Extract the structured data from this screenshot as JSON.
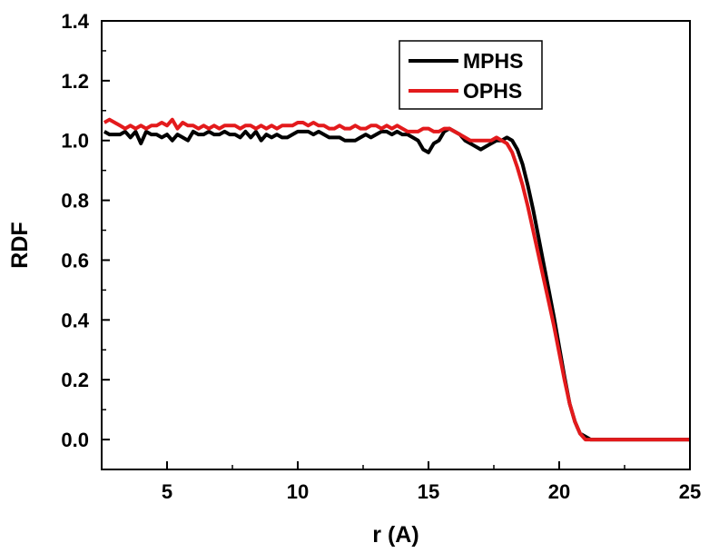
{
  "chart_data": {
    "type": "line",
    "xlabel": "r (A)",
    "ylabel": "RDF",
    "xlim": [
      2.5,
      25
    ],
    "ylim": [
      -0.1,
      1.4
    ],
    "xticks": [
      5,
      10,
      15,
      20,
      25
    ],
    "yticks": [
      0.0,
      0.2,
      0.4,
      0.6,
      0.8,
      1.0,
      1.2,
      1.4
    ],
    "ytick_labels": [
      "0.0",
      "0.2",
      "0.4",
      "0.6",
      "0.8",
      "1.0",
      "1.2",
      "1.4"
    ],
    "xtick_labels": [
      "5",
      "10",
      "15",
      "20",
      "25"
    ],
    "legend_position": "top-right",
    "grid": false,
    "series": [
      {
        "name": "MPHS",
        "color": "#000000",
        "x": [
          2.6,
          2.8,
          3.0,
          3.2,
          3.4,
          3.6,
          3.8,
          4.0,
          4.2,
          4.4,
          4.6,
          4.8,
          5.0,
          5.2,
          5.4,
          5.6,
          5.8,
          6.0,
          6.2,
          6.4,
          6.6,
          6.8,
          7.0,
          7.2,
          7.4,
          7.6,
          7.8,
          8.0,
          8.2,
          8.4,
          8.6,
          8.8,
          9.0,
          9.2,
          9.4,
          9.6,
          9.8,
          10.0,
          10.2,
          10.4,
          10.6,
          10.8,
          11.0,
          11.2,
          11.4,
          11.6,
          11.8,
          12.0,
          12.2,
          12.4,
          12.6,
          12.8,
          13.0,
          13.2,
          13.4,
          13.6,
          13.8,
          14.0,
          14.2,
          14.4,
          14.6,
          14.8,
          15.0,
          15.2,
          15.4,
          15.6,
          15.8,
          16.0,
          16.2,
          16.4,
          16.6,
          16.8,
          17.0,
          17.2,
          17.4,
          17.6,
          17.8,
          18.0,
          18.2,
          18.4,
          18.6,
          18.8,
          19.0,
          19.2,
          19.4,
          19.6,
          19.8,
          20.0,
          20.2,
          20.4,
          20.6,
          20.8,
          21.0,
          21.2,
          21.4,
          21.6,
          22.0,
          23.0,
          24.0,
          25.0
        ],
        "values": [
          1.03,
          1.02,
          1.02,
          1.02,
          1.03,
          1.01,
          1.03,
          0.99,
          1.03,
          1.02,
          1.02,
          1.01,
          1.02,
          1.0,
          1.02,
          1.01,
          1.0,
          1.03,
          1.02,
          1.02,
          1.03,
          1.02,
          1.02,
          1.03,
          1.02,
          1.02,
          1.01,
          1.03,
          1.01,
          1.03,
          1.0,
          1.02,
          1.01,
          1.02,
          1.01,
          1.01,
          1.02,
          1.03,
          1.03,
          1.03,
          1.02,
          1.03,
          1.02,
          1.01,
          1.01,
          1.01,
          1.0,
          1.0,
          1.0,
          1.01,
          1.02,
          1.01,
          1.02,
          1.03,
          1.03,
          1.02,
          1.03,
          1.02,
          1.02,
          1.01,
          1.0,
          0.97,
          0.96,
          0.99,
          1.0,
          1.03,
          1.04,
          1.03,
          1.02,
          1.0,
          0.99,
          0.98,
          0.97,
          0.98,
          0.99,
          1.0,
          1.0,
          1.01,
          1.0,
          0.97,
          0.92,
          0.85,
          0.77,
          0.68,
          0.59,
          0.5,
          0.41,
          0.31,
          0.21,
          0.12,
          0.06,
          0.02,
          0.01,
          0.0,
          0.0,
          0.0,
          0.0,
          0.0,
          0.0,
          0.0
        ]
      },
      {
        "name": "OPHS",
        "color": "#e31a1c",
        "x": [
          2.6,
          2.8,
          3.0,
          3.2,
          3.4,
          3.6,
          3.8,
          4.0,
          4.2,
          4.4,
          4.6,
          4.8,
          5.0,
          5.2,
          5.4,
          5.6,
          5.8,
          6.0,
          6.2,
          6.4,
          6.6,
          6.8,
          7.0,
          7.2,
          7.4,
          7.6,
          7.8,
          8.0,
          8.2,
          8.4,
          8.6,
          8.8,
          9.0,
          9.2,
          9.4,
          9.6,
          9.8,
          10.0,
          10.2,
          10.4,
          10.6,
          10.8,
          11.0,
          11.2,
          11.4,
          11.6,
          11.8,
          12.0,
          12.2,
          12.4,
          12.6,
          12.8,
          13.0,
          13.2,
          13.4,
          13.6,
          13.8,
          14.0,
          14.2,
          14.4,
          14.6,
          14.8,
          15.0,
          15.2,
          15.4,
          15.6,
          15.8,
          16.0,
          16.2,
          16.4,
          16.6,
          16.8,
          17.0,
          17.2,
          17.4,
          17.6,
          17.8,
          18.0,
          18.2,
          18.4,
          18.6,
          18.8,
          19.0,
          19.2,
          19.4,
          19.6,
          19.8,
          20.0,
          20.2,
          20.4,
          20.6,
          20.8,
          21.0,
          21.2,
          21.4,
          21.6,
          22.0,
          23.0,
          24.0,
          25.0
        ],
        "values": [
          1.06,
          1.07,
          1.06,
          1.05,
          1.04,
          1.05,
          1.04,
          1.05,
          1.04,
          1.05,
          1.05,
          1.06,
          1.05,
          1.07,
          1.04,
          1.06,
          1.05,
          1.05,
          1.04,
          1.05,
          1.04,
          1.05,
          1.04,
          1.05,
          1.05,
          1.05,
          1.04,
          1.05,
          1.05,
          1.04,
          1.05,
          1.04,
          1.05,
          1.04,
          1.05,
          1.05,
          1.05,
          1.06,
          1.06,
          1.05,
          1.06,
          1.05,
          1.05,
          1.04,
          1.04,
          1.05,
          1.04,
          1.04,
          1.05,
          1.04,
          1.04,
          1.05,
          1.05,
          1.04,
          1.05,
          1.04,
          1.05,
          1.04,
          1.03,
          1.03,
          1.03,
          1.04,
          1.04,
          1.03,
          1.03,
          1.04,
          1.04,
          1.03,
          1.02,
          1.01,
          1.0,
          1.0,
          1.0,
          1.0,
          1.0,
          1.01,
          1.0,
          0.99,
          0.96,
          0.91,
          0.85,
          0.78,
          0.7,
          0.62,
          0.54,
          0.46,
          0.38,
          0.29,
          0.2,
          0.12,
          0.06,
          0.02,
          0.0,
          0.0,
          0.0,
          0.0,
          0.0,
          0.0,
          0.0,
          0.0
        ]
      }
    ]
  }
}
